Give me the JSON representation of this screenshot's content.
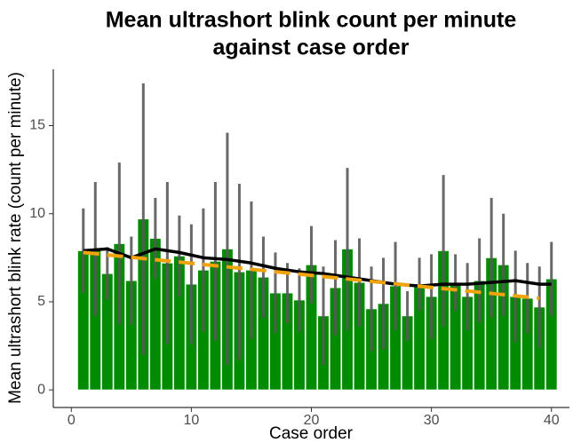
{
  "chart_data": {
    "type": "bar",
    "title": [
      "Mean ultrashort blink count per minute",
      "against case order"
    ],
    "x_label": "Case order",
    "y_label": "Mean ultrashort blink rate (count per minute)",
    "x": [
      1,
      2,
      3,
      4,
      5,
      6,
      7,
      8,
      9,
      10,
      11,
      12,
      13,
      14,
      15,
      16,
      17,
      18,
      19,
      20,
      21,
      22,
      23,
      24,
      25,
      26,
      27,
      28,
      29,
      30,
      31,
      32,
      33,
      34,
      35,
      36,
      37,
      38,
      39,
      40
    ],
    "values": [
      7.9,
      8.0,
      6.6,
      8.3,
      6.2,
      9.7,
      8.6,
      7.2,
      7.6,
      6.0,
      6.8,
      7.3,
      8.0,
      6.7,
      6.8,
      6.4,
      5.5,
      5.5,
      5.1,
      7.1,
      4.2,
      5.8,
      8.0,
      6.1,
      4.6,
      4.9,
      5.9,
      4.2,
      6.0,
      5.3,
      7.9,
      6.1,
      5.3,
      6.2,
      7.5,
      7.1,
      5.3,
      5.2,
      4.7,
      6.3
    ],
    "errors": [
      2.4,
      3.8,
      1.5,
      4.6,
      2.5,
      7.7,
      2.3,
      4.6,
      2.3,
      3.4,
      3.5,
      4.5,
      6.6,
      5.0,
      3.9,
      2.3,
      2.3,
      1.7,
      1.8,
      2.2,
      2.8,
      2.7,
      4.6,
      2.5,
      2.4,
      2.6,
      2.5,
      1.4,
      1.5,
      2.4,
      4.3,
      1.6,
      1.9,
      2.4,
      3.4,
      2.9,
      2.6,
      2.0,
      2.3,
      2.1
    ],
    "color": "#008b00",
    "error_color": "#595959",
    "smooth": {
      "color": "#000000",
      "x": [
        1,
        3,
        5,
        7,
        9,
        11,
        13,
        15,
        17,
        19,
        21,
        23,
        25,
        27,
        29,
        31,
        33,
        35,
        37,
        39,
        40
      ],
      "values": [
        7.9,
        8.0,
        7.5,
        8.0,
        7.8,
        7.5,
        7.4,
        7.2,
        6.9,
        6.7,
        6.6,
        6.4,
        6.2,
        6.0,
        5.9,
        6.0,
        6.0,
        6.1,
        6.2,
        6.0,
        6.0
      ]
    },
    "trend": {
      "color": "#f0a30a",
      "x": [
        1,
        39
      ],
      "values": [
        7.8,
        5.2
      ]
    },
    "xlim": [
      -1.5,
      41.5
    ],
    "ylim": [
      -1,
      18.2
    ],
    "xticks": [
      0,
      10,
      20,
      30,
      40
    ],
    "yticks": [
      0,
      5,
      10,
      15
    ],
    "grid": false
  }
}
